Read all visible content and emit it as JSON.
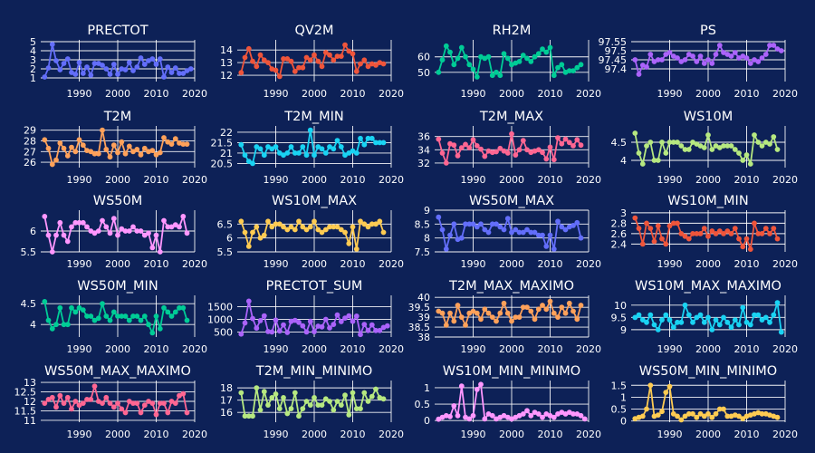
{
  "chart_data": {
    "type": "line",
    "background": "#0d2157",
    "grid": true,
    "x_start_year": 1981,
    "x_ticks": [
      1990,
      2000,
      2010,
      2020
    ],
    "subplots": [
      {
        "title": "PRECTOT",
        "color": "#636efa",
        "ylim": [
          0.6,
          5.2
        ],
        "yticks": [
          1,
          2,
          3,
          4,
          5
        ],
        "values": [
          1.1,
          2.1,
          4.7,
          2.9,
          1.9,
          2.6,
          3.1,
          1.6,
          1.4,
          2.7,
          1.5,
          2.2,
          1.3,
          2.6,
          2.6,
          2.4,
          2.0,
          1.4,
          2.5,
          1.4,
          2.0,
          1.9,
          2.7,
          1.8,
          2.2,
          3.2,
          2.5,
          2.9,
          3.1,
          2.5,
          3.1,
          1.1,
          2.2,
          1.6,
          2.1,
          1.5,
          1.5,
          1.8,
          2.0
        ]
      },
      {
        "title": "QV2M",
        "color": "#ef553b",
        "ylim": [
          11.5,
          14.8
        ],
        "yticks": [
          12,
          13,
          14
        ],
        "values": [
          12.2,
          13.4,
          14.1,
          13.1,
          12.7,
          13.6,
          13.2,
          13.0,
          12.5,
          12.4,
          11.9,
          13.3,
          13.3,
          13.1,
          12.3,
          12.6,
          12.6,
          13.4,
          13.2,
          13.6,
          13.1,
          12.7,
          13.8,
          13.6,
          13.2,
          13.5,
          13.5,
          14.4,
          13.9,
          13.7,
          12.3,
          12.9,
          13.2,
          12.7,
          12.9,
          12.8,
          13.0,
          12.9
        ]
      },
      {
        "title": "RH2M",
        "color": "#00cc96",
        "ylim": [
          44,
          71
        ],
        "yticks": [
          50,
          60
        ],
        "values": [
          50,
          58,
          67,
          63,
          55,
          59,
          66,
          60,
          55,
          52,
          47,
          60,
          59,
          60,
          48,
          50,
          48,
          62,
          59,
          55,
          56,
          57,
          61,
          59,
          57,
          60,
          62,
          65,
          63,
          66,
          48,
          53,
          55,
          50,
          51,
          51,
          53,
          55
        ]
      },
      {
        "title": "PS",
        "color": "#ab63fa",
        "ylim": [
          97.33,
          97.56
        ],
        "yticks": [
          97.4,
          97.45,
          97.5,
          97.55
        ],
        "values": [
          97.45,
          97.37,
          97.42,
          97.41,
          97.48,
          97.44,
          97.45,
          97.45,
          97.48,
          97.49,
          97.47,
          97.46,
          97.44,
          97.45,
          97.48,
          97.47,
          97.44,
          97.47,
          97.43,
          97.45,
          97.43,
          97.48,
          97.53,
          97.49,
          97.48,
          97.47,
          97.49,
          97.46,
          97.47,
          97.46,
          97.43,
          97.45,
          97.44,
          97.46,
          97.48,
          97.53,
          97.53,
          97.51,
          97.5
        ]
      },
      {
        "title": "T2M",
        "color": "#ffa15a",
        "ylim": [
          25.5,
          29.4
        ],
        "yticks": [
          26,
          27,
          28,
          29
        ],
        "values": [
          28.1,
          27.3,
          25.8,
          26.2,
          27.8,
          27.3,
          26.6,
          27.4,
          27.0,
          28.1,
          27.6,
          27.1,
          27.0,
          26.8,
          26.8,
          29.0,
          27.2,
          26.5,
          27.6,
          26.9,
          27.9,
          26.8,
          27.5,
          27.0,
          27.2,
          26.7,
          27.3,
          27.0,
          27.1,
          26.7,
          26.9,
          28.3,
          27.9,
          27.7,
          28.2,
          27.8,
          27.7,
          27.7
        ]
      },
      {
        "title": "T2M_MIN",
        "color": "#19d3f3",
        "ylim": [
          20.3,
          22.3
        ],
        "yticks": [
          20.5,
          21,
          21.5,
          22
        ],
        "values": [
          21.4,
          20.9,
          20.6,
          20.5,
          21.3,
          21.2,
          20.9,
          21.3,
          21.2,
          21.3,
          21.0,
          20.9,
          21.0,
          21.3,
          21.0,
          21.0,
          21.3,
          20.9,
          22.1,
          20.9,
          21.3,
          21.2,
          21.0,
          21.3,
          21.2,
          21.6,
          21.3,
          20.9,
          21.0,
          21.1,
          21.0,
          21.7,
          21.4,
          21.7,
          21.7,
          21.5,
          21.5,
          21.5
        ]
      },
      {
        "title": "T2M_MAX",
        "color": "#ff6692",
        "ylim": [
          31.3,
          37.6
        ],
        "yticks": [
          32,
          34,
          36
        ],
        "values": [
          35.6,
          33.5,
          32.0,
          34.9,
          34.7,
          33.1,
          34.3,
          34.8,
          34.3,
          35.5,
          34.6,
          34.1,
          33.0,
          33.8,
          33.6,
          33.7,
          34.2,
          33.8,
          33.5,
          36.4,
          33.2,
          34.0,
          35.4,
          34.0,
          33.6,
          33.8,
          34.0,
          33.6,
          32.6,
          34.4,
          32.5,
          35.8,
          34.9,
          35.6,
          35.1,
          34.6,
          35.5,
          34.7
        ]
      },
      {
        "title": "WS10M",
        "color": "#b6e880",
        "ylim": [
          3.8,
          4.95
        ],
        "yticks": [
          4,
          4.5
        ],
        "values": [
          4.75,
          4.2,
          3.9,
          4.4,
          4.5,
          4.0,
          4.0,
          4.5,
          4.2,
          4.5,
          4.5,
          4.5,
          4.4,
          4.3,
          4.3,
          4.5,
          4.45,
          4.4,
          4.35,
          4.7,
          4.3,
          4.4,
          4.35,
          4.4,
          4.4,
          4.4,
          4.3,
          4.2,
          4.0,
          4.15,
          3.9,
          4.7,
          4.5,
          4.4,
          4.5,
          4.45,
          4.65,
          4.3
        ]
      },
      {
        "title": "WS50M",
        "color": "#ff97ff",
        "ylim": [
          5.5,
          6.5
        ],
        "yticks": [
          5.5,
          6
        ],
        "values": [
          6.35,
          5.9,
          5.5,
          5.9,
          6.2,
          5.9,
          5.75,
          6.1,
          6.2,
          6.2,
          6.2,
          6.1,
          6.0,
          5.95,
          6.0,
          6.25,
          6.1,
          5.95,
          6.3,
          5.9,
          6.05,
          6.0,
          6.0,
          6.1,
          6.0,
          6.0,
          5.9,
          5.95,
          5.6,
          5.9,
          5.5,
          6.25,
          6.1,
          6.1,
          6.15,
          6.1,
          6.35,
          5.95
        ]
      },
      {
        "title": "WS10M_MAX",
        "color": "#fecb52",
        "ylim": [
          5.5,
          7.0
        ],
        "yticks": [
          5.5,
          6,
          6.5
        ],
        "values": [
          6.6,
          6.2,
          5.7,
          6.2,
          6.4,
          6.0,
          6.1,
          6.6,
          6.4,
          6.5,
          6.5,
          6.4,
          6.3,
          6.4,
          6.3,
          6.6,
          6.4,
          6.3,
          6.4,
          6.6,
          6.3,
          6.2,
          6.3,
          6.4,
          6.4,
          6.4,
          6.3,
          6.2,
          5.8,
          6.4,
          5.6,
          6.6,
          6.5,
          6.4,
          6.5,
          6.5,
          6.6,
          6.2
        ]
      },
      {
        "title": "WS50M_MAX",
        "color": "#636efa",
        "ylim": [
          7.5,
          9.0
        ],
        "yticks": [
          7.5,
          8,
          8.5,
          9
        ],
        "values": [
          8.75,
          8.3,
          7.6,
          8.1,
          8.5,
          7.95,
          8.0,
          8.5,
          8.5,
          8.5,
          8.4,
          8.5,
          8.3,
          8.2,
          8.5,
          8.5,
          8.4,
          8.3,
          8.7,
          8.2,
          8.3,
          8.2,
          8.2,
          8.3,
          8.2,
          8.2,
          8.1,
          8.1,
          7.7,
          8.1,
          7.6,
          8.6,
          8.4,
          8.3,
          8.4,
          8.45,
          8.55,
          8.0
        ]
      },
      {
        "title": "WS10M_MIN",
        "color": "#ef553b",
        "ylim": [
          2.25,
          3.05
        ],
        "yticks": [
          2.4,
          2.6,
          2.8,
          3
        ],
        "values": [
          2.9,
          2.7,
          2.4,
          2.8,
          2.7,
          2.45,
          2.75,
          2.5,
          2.4,
          2.75,
          2.8,
          2.8,
          2.6,
          2.55,
          2.5,
          2.6,
          2.6,
          2.6,
          2.7,
          2.55,
          2.65,
          2.6,
          2.65,
          2.6,
          2.65,
          2.6,
          2.7,
          2.5,
          2.35,
          2.5,
          2.3,
          2.8,
          2.6,
          2.6,
          2.7,
          2.6,
          2.7,
          2.5
        ]
      },
      {
        "title": "WS50M_MIN",
        "color": "#00cc96",
        "ylim": [
          3.7,
          4.7
        ],
        "yticks": [
          4,
          4.5
        ],
        "values": [
          4.55,
          4.1,
          3.9,
          4.0,
          4.4,
          4.0,
          4.0,
          4.4,
          4.3,
          4.4,
          4.35,
          4.2,
          4.2,
          4.1,
          4.15,
          4.5,
          4.2,
          4.1,
          4.3,
          4.2,
          4.2,
          4.2,
          4.1,
          4.2,
          4.2,
          4.1,
          4.2,
          4.0,
          3.8,
          4.2,
          3.9,
          4.4,
          4.3,
          4.2,
          4.3,
          4.4,
          4.4,
          4.1
        ]
      },
      {
        "title": "PRECTOT_SUM",
        "color": "#ab63fa",
        "ylim": [
          300,
          1950
        ],
        "yticks": [
          500,
          1000,
          1500
        ],
        "values": [
          420,
          860,
          1720,
          1030,
          650,
          950,
          1140,
          520,
          500,
          970,
          540,
          780,
          480,
          920,
          960,
          880,
          740,
          500,
          920,
          510,
          730,
          700,
          1000,
          660,
          800,
          1170,
          910,
          1050,
          1140,
          920,
          1130,
          400,
          800,
          560,
          780,
          560,
          560,
          680,
          740
        ]
      },
      {
        "title": "T2M_MAX_MAXIMO",
        "color": "#ffa15a",
        "ylim": [
          38,
          40.1
        ],
        "yticks": [
          38,
          38.5,
          39,
          39.5,
          40
        ],
        "values": [
          39.3,
          39.2,
          38.6,
          39.2,
          38.8,
          39.6,
          39.0,
          38.6,
          39.2,
          39.3,
          39.2,
          38.9,
          39.4,
          39.2,
          39.0,
          38.8,
          39.2,
          39.7,
          39.2,
          38.8,
          39.0,
          39.0,
          39.5,
          39.5,
          39.3,
          38.9,
          39.4,
          39.6,
          39.4,
          39.8,
          39.2,
          39.0,
          39.5,
          39.2,
          39.7,
          39.3,
          38.9,
          39.6
        ]
      },
      {
        "title": "WS10M_MAX_MAXIMO",
        "color": "#19d3f3",
        "ylim": [
          8.7,
          10.4
        ],
        "yticks": [
          9,
          9.5,
          10
        ],
        "values": [
          9.5,
          9.6,
          9.4,
          9.3,
          9.6,
          9.2,
          9.0,
          9.4,
          9.6,
          9.4,
          9.1,
          9.3,
          9.3,
          10.0,
          9.6,
          9.3,
          9.5,
          9.6,
          9.3,
          9.5,
          9.0,
          9.4,
          9.2,
          9.5,
          9.3,
          9.1,
          9.4,
          9.2,
          9.9,
          9.3,
          9.2,
          9.6,
          9.6,
          9.4,
          9.5,
          9.3,
          9.6,
          10.1,
          8.9
        ]
      },
      {
        "title": "WS50M_MAX_MAXIMO",
        "color": "#ff6692",
        "ylim": [
          10.9,
          13.1
        ],
        "yticks": [
          11,
          11.5,
          12,
          12.5,
          13
        ],
        "values": [
          11.9,
          12.1,
          12.2,
          11.7,
          12.3,
          11.9,
          12.2,
          11.6,
          12.0,
          11.8,
          11.9,
          12.1,
          12.1,
          12.8,
          12.0,
          11.9,
          12.2,
          11.9,
          11.7,
          11.9,
          11.6,
          11.4,
          12.0,
          11.9,
          11.9,
          11.4,
          11.8,
          12.0,
          11.9,
          11.3,
          11.9,
          11.9,
          11.4,
          12.0,
          11.9,
          12.3,
          12.4,
          11.4
        ]
      },
      {
        "title": "T2M_MIN_MINIMO",
        "color": "#b6e880",
        "ylim": [
          15.2,
          18.6
        ],
        "yticks": [
          16,
          17,
          18
        ],
        "values": [
          17.6,
          15.7,
          15.7,
          15.7,
          18.0,
          16.2,
          17.7,
          16.6,
          17.2,
          17.5,
          16.3,
          17.2,
          15.9,
          16.3,
          17.6,
          15.7,
          16.3,
          16.9,
          16.6,
          17.2,
          16.6,
          16.6,
          17.1,
          16.9,
          16.2,
          16.9,
          16.6,
          17.4,
          15.8,
          17.6,
          16.3,
          16.3,
          17.6,
          16.9,
          17.3,
          17.9,
          17.2,
          17.1
        ]
      },
      {
        "title": "WS10M_MIN_MINIMO",
        "color": "#ff97ff",
        "ylim": [
          -0.05,
          1.22
        ],
        "yticks": [
          0,
          0.5,
          1
        ],
        "values": [
          0.04,
          0.1,
          0.15,
          0.12,
          0.45,
          0.15,
          1.05,
          0.1,
          0.05,
          0.15,
          0.95,
          1.1,
          0.05,
          0.2,
          0.15,
          0.05,
          0.1,
          0.15,
          0.1,
          0.05,
          0.1,
          0.15,
          0.2,
          0.3,
          0.15,
          0.25,
          0.2,
          0.1,
          0.2,
          0.15,
          0.1,
          0.2,
          0.25,
          0.2,
          0.25,
          0.2,
          0.2,
          0.15,
          0.05
        ]
      },
      {
        "title": "WS50M_MIN_MINIMO",
        "color": "#fecb52",
        "ylim": [
          -0.05,
          1.7
        ],
        "yticks": [
          0,
          0.5,
          1,
          1.5
        ],
        "values": [
          0.1,
          0.15,
          0.2,
          0.5,
          1.5,
          0.2,
          0.25,
          0.4,
          1.2,
          1.45,
          0.3,
          0.2,
          0.05,
          0.2,
          0.3,
          0.3,
          0.15,
          0.3,
          0.2,
          0.3,
          0.15,
          0.3,
          0.5,
          0.5,
          0.2,
          0.2,
          0.25,
          0.2,
          0.1,
          0.2,
          0.25,
          0.3,
          0.35,
          0.3,
          0.3,
          0.25,
          0.2,
          0.15
        ]
      }
    ]
  }
}
